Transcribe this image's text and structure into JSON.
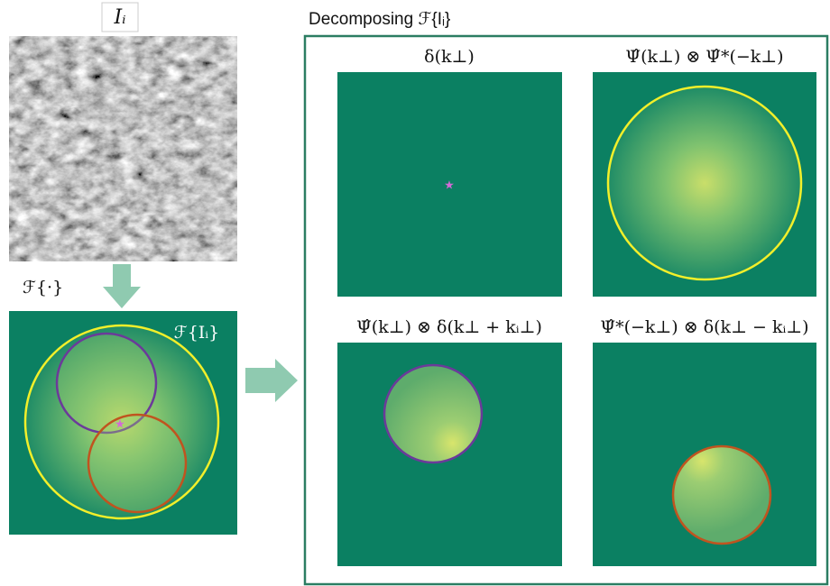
{
  "input_label": "Iᵢ",
  "transform_label": "ℱ{·}",
  "spectrum_label": "ℱ{Iᵢ}",
  "decomposition": {
    "title": "Decomposing ℱ{Iᵢ}",
    "panels": [
      {
        "label": "δ(k⊥)"
      },
      {
        "label": "Ψ̂(k⊥) ⊗ Ψ̂*(−k⊥)"
      },
      {
        "label": "Ψ̂(k⊥) ⊗ δ(k⊥ + kᵢ⊥)"
      },
      {
        "label": "Ψ̂*(−k⊥) ⊗ δ(k⊥ − kᵢ⊥)"
      }
    ]
  }
}
